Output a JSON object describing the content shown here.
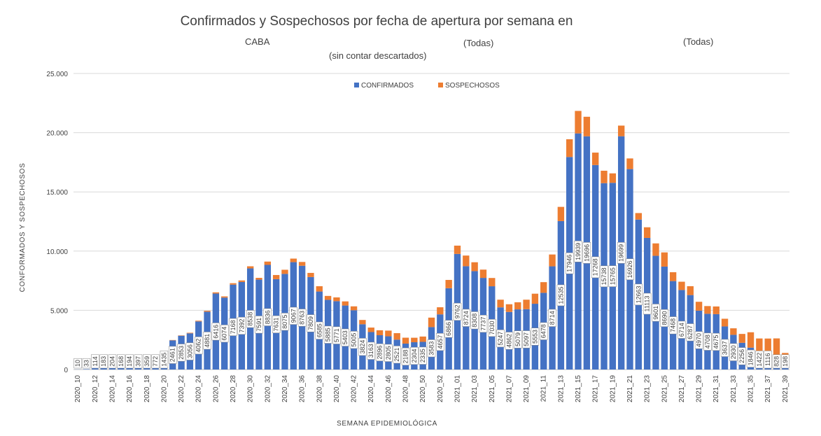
{
  "colors": {
    "confirmados": "#4472C4",
    "sospechosos": "#ED7D31",
    "grid": "#D9D9D9",
    "text": "#404040"
  },
  "chart_data": {
    "type": "bar",
    "stacked": true,
    "title": "Confirmados y Sospechosos por fecha de apertura por semana en",
    "subtitle_parts": [
      "CABA",
      "(sin contar descartados)",
      "(Todas)",
      "(Todas)"
    ],
    "xlabel": "SEMANA EPIDEMIOLÓGICA",
    "ylabel": "CONFORMADOS Y SOSPECHOSOS",
    "ylim": [
      0,
      25000
    ],
    "ytick_labels": [
      "0",
      "5.000",
      "10.000",
      "15.000",
      "20.000",
      "25.000"
    ],
    "ytick_values": [
      0,
      5000,
      10000,
      15000,
      20000,
      25000
    ],
    "legend_position": "top",
    "grid": true,
    "xtick_labels": [
      "2020_10",
      "2020_12",
      "2020_14",
      "2020_16",
      "2020_18",
      "2020_20",
      "2020_22",
      "2020_24",
      "2020_26",
      "2020_28",
      "2020_30",
      "2020_32",
      "2020_34",
      "2020_36",
      "2020_38",
      "2020_40",
      "2020_42",
      "2020_44",
      "2020_46",
      "2020_48",
      "2020_50",
      "2020_52",
      "2021_01",
      "2021_03",
      "2021_05",
      "2021_07",
      "2021_09",
      "2021_11",
      "2021_13",
      "2021_15",
      "2021_17",
      "2021_19",
      "2021_21",
      "2021_23",
      "2021_25",
      "2021_27",
      "2021_29",
      "2021_31",
      "2021_33",
      "2021_35",
      "2021_37",
      "2021_39"
    ],
    "series": [
      {
        "name": "CONFIRMADOS",
        "values": [
          10,
          33,
          114,
          183,
          204,
          168,
          194,
          397,
          359,
          772,
          1435,
          2461,
          2853,
          3056,
          4062,
          4881,
          6416,
          6074,
          7168,
          7392,
          8538,
          7591,
          8836,
          7631,
          8075,
          9067,
          8763,
          7809,
          6585,
          5885,
          5771,
          5403,
          5005,
          3824,
          3163,
          2896,
          2805,
          2521,
          2188,
          2304,
          2335,
          3583,
          4657,
          6866,
          9762,
          8724,
          8308,
          7737,
          7030,
          5247,
          4862,
          5079,
          5097,
          5553,
          6478,
          8714,
          12535,
          17946,
          19939,
          19696,
          17268,
          15738,
          15765,
          19699,
          16926,
          12663,
          11113,
          9601,
          8690,
          7468,
          6714,
          6287,
          4970,
          4708,
          4675,
          3637,
          2930,
          2256,
          1846,
          1422,
          1116,
          828,
          198
        ]
      },
      {
        "name": "SOSPECHOSOS",
        "values": [
          0,
          0,
          0,
          0,
          0,
          0,
          0,
          0,
          0,
          0,
          20,
          30,
          30,
          50,
          60,
          80,
          100,
          100,
          120,
          130,
          180,
          150,
          280,
          350,
          350,
          300,
          320,
          350,
          450,
          330,
          320,
          350,
          330,
          360,
          380,
          420,
          480,
          550,
          500,
          380,
          450,
          800,
          600,
          700,
          700,
          900,
          750,
          700,
          700,
          650,
          650,
          600,
          800,
          850,
          900,
          1000,
          1200,
          1500,
          1900,
          1650,
          1050,
          1050,
          800,
          900,
          900,
          550,
          900,
          1050,
          1200,
          750,
          700,
          750,
          750,
          650,
          650,
          650,
          550,
          750,
          1300,
          1200,
          1500,
          1800,
          1200
        ]
      }
    ]
  }
}
